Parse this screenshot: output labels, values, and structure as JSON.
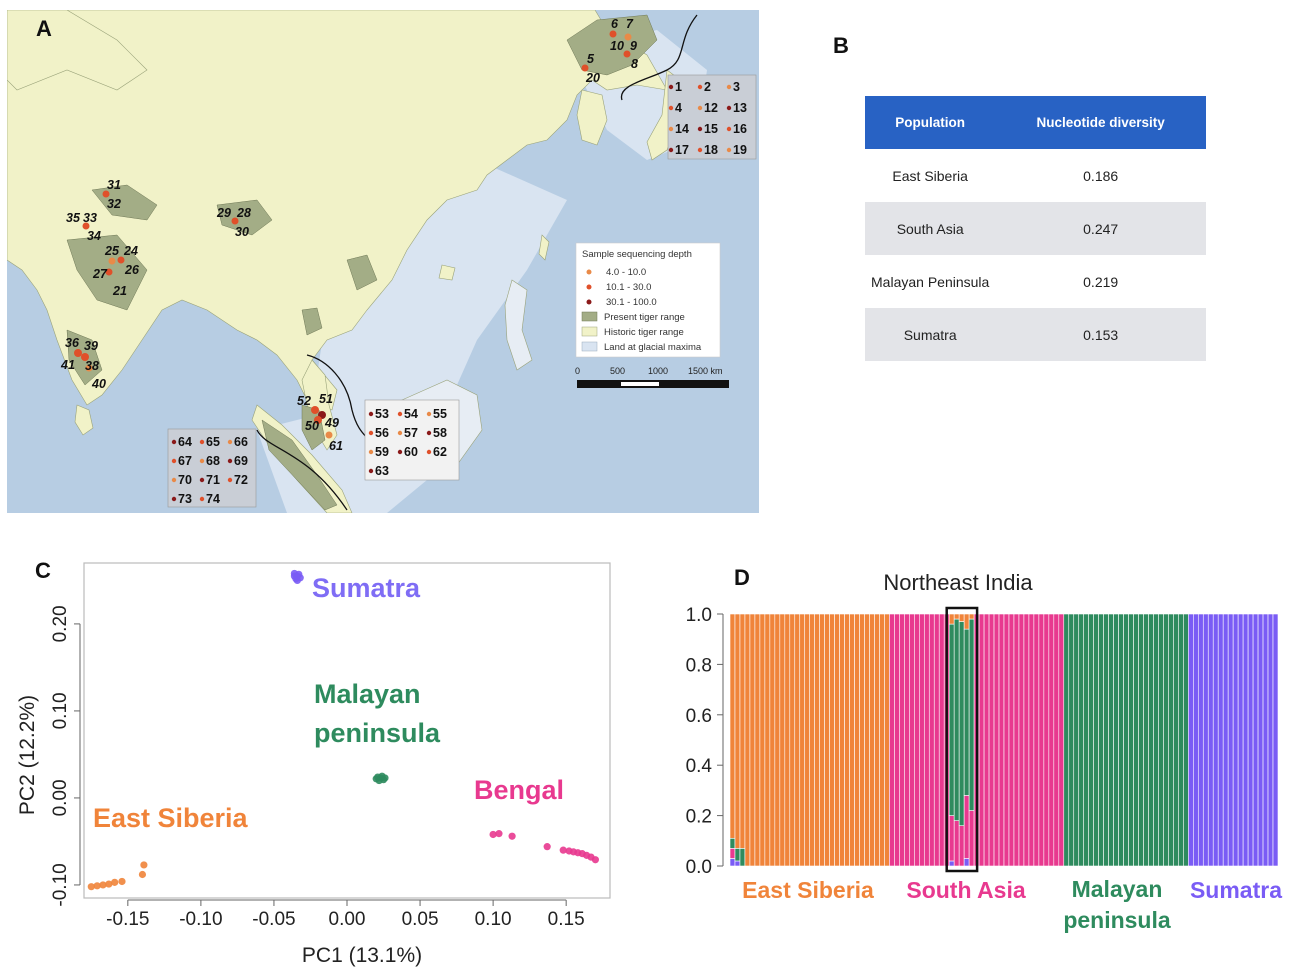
{
  "panel_labels": {
    "a": "A",
    "b": "B",
    "c": "C",
    "d": "D"
  },
  "colors": {
    "sea": "#b7cde3",
    "glacial_land": "#d9e4f1",
    "historic_range": "#f1f2c8",
    "present_range": "#a3ad86",
    "east_siberia": "#f0843a",
    "south_asia": "#e8398f",
    "malayan": "#2e8b5e",
    "sumatra": "#7a5cf5",
    "table_header": "#2862c4"
  },
  "map": {
    "legend": {
      "title": "Sample sequencing depth",
      "items": [
        "4.0 - 10.0",
        "10.1 - 30.0",
        "30.1 - 100.0",
        "Present tiger range",
        "Historic tiger range",
        "Land at glacial maxima"
      ]
    },
    "scale_labels": [
      "0",
      "500",
      "1000",
      "1500 km"
    ],
    "labels": {
      "l6": "6",
      "l7": "7",
      "l10": "10",
      "l9": "9",
      "l5": "5",
      "l8": "8",
      "l20": "20",
      "l31": "31",
      "l32": "32",
      "l35": "35",
      "l33": "33",
      "l34": "34",
      "l29": "29",
      "l28": "28",
      "l30": "30",
      "l25": "25",
      "l24": "24",
      "l26": "26",
      "l27": "27",
      "l21": "21",
      "l36": "36",
      "l39": "39",
      "l41": "41",
      "l38": "38",
      "l40": "40",
      "l52": "52",
      "l51": "51",
      "l50": "50",
      "l49": "49",
      "l61": "61"
    },
    "box_japan": [
      [
        "1",
        "2",
        "3"
      ],
      [
        "4",
        "12",
        "13"
      ],
      [
        "14",
        "15",
        "16"
      ],
      [
        "17",
        "18",
        "19"
      ]
    ],
    "box_malaya": [
      [
        "53",
        "54",
        "55"
      ],
      [
        "56",
        "57",
        "58"
      ],
      [
        "59",
        "60",
        "62"
      ],
      [
        "63"
      ]
    ],
    "box_sumatra": [
      [
        "64",
        "65",
        "66"
      ],
      [
        "67",
        "68",
        "69"
      ],
      [
        "70",
        "71",
        "72"
      ],
      [
        "73",
        "74"
      ]
    ]
  },
  "table": {
    "headers": [
      "Population",
      "Nucleotide diversity"
    ],
    "rows": [
      {
        "population": "East Siberia",
        "diversity": "0.186"
      },
      {
        "population": "South Asia",
        "diversity": "0.247"
      },
      {
        "population": "Malayan Peninsula",
        "diversity": "0.219"
      },
      {
        "population": "Sumatra",
        "diversity": "0.153"
      }
    ]
  },
  "chart_data": [
    {
      "type": "scatter",
      "xlabel": "PC1 (13.1%)",
      "ylabel": "PC2 (12.2%)",
      "xlim": [
        -0.18,
        0.18
      ],
      "ylim": [
        -0.115,
        0.27
      ],
      "xticks": [
        -0.15,
        -0.1,
        -0.05,
        0.0,
        0.05,
        0.1,
        0.15
      ],
      "xtick_labels": [
        "-0.15",
        "-0.10",
        "-0.05",
        "0.00",
        "0.05",
        "0.10",
        "0.15"
      ],
      "yticks": [
        -0.1,
        0.0,
        0.1,
        0.2
      ],
      "ytick_labels": [
        "-0.10",
        "0.00",
        "0.10",
        "0.20"
      ],
      "grid": false,
      "series": [
        {
          "name": "Sumatra",
          "color": "#7a5cf5",
          "points": [
            [
              -0.036,
              0.258
            ],
            [
              -0.034,
              0.255
            ],
            [
              -0.035,
              0.252
            ],
            [
              -0.033,
              0.257
            ],
            [
              -0.032,
              0.253
            ],
            [
              -0.034,
              0.25
            ],
            [
              -0.036,
              0.255
            ]
          ]
        },
        {
          "name": "Malayan peninsula",
          "color": "#2e8b5e",
          "points": [
            [
              0.021,
              0.024
            ],
            [
              0.023,
              0.023
            ],
            [
              0.025,
              0.021
            ],
            [
              0.022,
              0.02
            ],
            [
              0.024,
              0.025
            ],
            [
              0.02,
              0.022
            ],
            [
              0.026,
              0.023
            ]
          ]
        },
        {
          "name": "Bengal",
          "color": "#e8398f",
          "points": [
            [
              0.1,
              -0.042
            ],
            [
              0.104,
              -0.041
            ],
            [
              0.113,
              -0.044
            ],
            [
              0.137,
              -0.056
            ],
            [
              0.148,
              -0.06
            ],
            [
              0.152,
              -0.061
            ],
            [
              0.155,
              -0.062
            ],
            [
              0.158,
              -0.063
            ],
            [
              0.161,
              -0.064
            ],
            [
              0.164,
              -0.066
            ],
            [
              0.167,
              -0.068
            ],
            [
              0.17,
              -0.071
            ]
          ]
        },
        {
          "name": "East Siberia",
          "color": "#f0843a",
          "points": [
            [
              -0.175,
              -0.102
            ],
            [
              -0.171,
              -0.101
            ],
            [
              -0.167,
              -0.1
            ],
            [
              -0.163,
              -0.099
            ],
            [
              -0.159,
              -0.097
            ],
            [
              -0.154,
              -0.096
            ],
            [
              -0.14,
              -0.088
            ],
            [
              -0.139,
              -0.077
            ]
          ]
        }
      ]
    },
    {
      "type": "bar",
      "title": "Northeast India",
      "stacked": true,
      "ylim": [
        0,
        1
      ],
      "yticks": [
        0.0,
        0.2,
        0.4,
        0.6,
        0.8,
        1.0
      ],
      "ytick_labels": [
        "0.0",
        "0.2",
        "0.4",
        "0.6",
        "0.8",
        "1.0"
      ],
      "groups": [
        {
          "name": "East Siberia",
          "count": 32,
          "color": "#f0843a"
        },
        {
          "name": "South Asia",
          "count": 35,
          "color": "#e8398f"
        },
        {
          "name": "Malayan peninsula",
          "count": 25,
          "color": "#2e8b5e"
        },
        {
          "name": "Sumatra",
          "count": 18,
          "color": "#7a5cf5"
        }
      ],
      "admixed_bars": [
        {
          "index": 0,
          "orange": 0.89,
          "pink": 0.04,
          "green": 0.04,
          "purple": 0.03
        },
        {
          "index": 1,
          "orange": 0.93,
          "pink": 0.0,
          "green": 0.05,
          "purple": 0.02
        },
        {
          "index": 2,
          "orange": 0.93,
          "pink": 0.0,
          "green": 0.07,
          "purple": 0.0
        },
        {
          "index": 44,
          "orange": 0.04,
          "pink": 0.18,
          "green": 0.76,
          "purple": 0.02
        },
        {
          "index": 45,
          "orange": 0.02,
          "pink": 0.18,
          "green": 0.8,
          "purple": 0.0
        },
        {
          "index": 46,
          "orange": 0.03,
          "pink": 0.16,
          "green": 0.81,
          "purple": 0.0
        },
        {
          "index": 47,
          "orange": 0.06,
          "pink": 0.25,
          "green": 0.66,
          "purple": 0.03
        },
        {
          "index": 48,
          "orange": 0.02,
          "pink": 0.22,
          "green": 0.76,
          "purple": 0.0
        }
      ],
      "highlight_label": "Northeast India",
      "group_labels": [
        "East Siberia",
        "South Asia",
        "Malayan\npeninsula",
        "Sumatra"
      ]
    }
  ],
  "pca_labels": {
    "sumatra": "Sumatra",
    "malayan_1": "Malayan",
    "malayan_2": "peninsula",
    "bengal": "Bengal",
    "east_siberia": "East Siberia"
  },
  "structure_labels": {
    "east_siberia": "East Siberia",
    "south_asia": "South Asia",
    "malayan_1": "Malayan",
    "malayan_2": "peninsula",
    "sumatra": "Sumatra"
  }
}
